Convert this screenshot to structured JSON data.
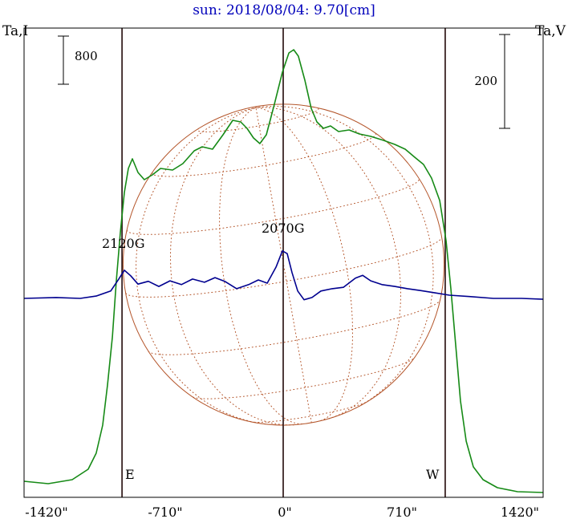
{
  "title": "sun: 2018/08/04: 9.70[cm]",
  "axis_labels": {
    "left": "Ta,I",
    "right": "Ta,V"
  },
  "scale_bars": {
    "left_label": "800",
    "right_label": "200"
  },
  "limb_labels": {
    "east": "E",
    "west": "W"
  },
  "annotations": {
    "east_spot": "2120G",
    "center_spot": "2070G"
  },
  "colors": {
    "title": "#0000bb",
    "intensity": "#168a16",
    "polarization": "#00008f",
    "grid": "#b4552a",
    "marker_line": "#3a2424",
    "frame": "#000000",
    "text": "#000000"
  },
  "chart_data": {
    "type": "line",
    "title": "sun: 2018/08/04: 9.70[cm]",
    "x_tick_labels": [
      "-1420\"",
      "-710\"",
      "0\"",
      "710\"",
      "1420\""
    ],
    "x_tick_arcsec": [
      -1420,
      -710,
      0,
      710,
      1420
    ],
    "xlim_arcsec": [
      -1555,
      1560
    ],
    "grid_on": false,
    "legend": "none",
    "limb_marker_arcsec": {
      "east": -967,
      "center": 0,
      "west": 972
    },
    "solar_disk": {
      "radius_arcsec": 963,
      "b0_deg": 6,
      "p_deg": 10,
      "lat_step_deg": 22.5,
      "lon_step_deg": 22.5
    },
    "scale_bar_units": {
      "intensity": 800,
      "polarization": 200
    },
    "annotations": [
      {
        "text": "2120G",
        "x_arcsec": -950,
        "series": "Ta,V"
      },
      {
        "text": "2070G",
        "x_arcsec": -10,
        "series": "Ta,V"
      }
    ],
    "series": [
      {
        "name": "Ta,I",
        "color_key": "intensity",
        "units": "scale-bar = 800",
        "points": [
          [
            -1555,
            200
          ],
          [
            -1410,
            160
          ],
          [
            -1266,
            227
          ],
          [
            -1170,
            400
          ],
          [
            -1122,
            667
          ],
          [
            -1083,
            1133
          ],
          [
            -1054,
            1800
          ],
          [
            -1025,
            2600
          ],
          [
            -1001,
            3533
          ],
          [
            -977,
            4333
          ],
          [
            -953,
            5000
          ],
          [
            -929,
            5400
          ],
          [
            -905,
            5560
          ],
          [
            -871,
            5333
          ],
          [
            -833,
            5213
          ],
          [
            -785,
            5293
          ],
          [
            -736,
            5400
          ],
          [
            -664,
            5373
          ],
          [
            -602,
            5480
          ],
          [
            -534,
            5693
          ],
          [
            -486,
            5760
          ],
          [
            -424,
            5720
          ],
          [
            -361,
            5960
          ],
          [
            -303,
            6200
          ],
          [
            -255,
            6173
          ],
          [
            -217,
            6067
          ],
          [
            -178,
            5907
          ],
          [
            -140,
            5813
          ],
          [
            -101,
            5960
          ],
          [
            -53,
            6467
          ],
          [
            -5,
            7000
          ],
          [
            34,
            7320
          ],
          [
            63,
            7373
          ],
          [
            91,
            7267
          ],
          [
            130,
            6867
          ],
          [
            168,
            6400
          ],
          [
            202,
            6173
          ],
          [
            241,
            6067
          ],
          [
            284,
            6107
          ],
          [
            332,
            6013
          ],
          [
            395,
            6040
          ],
          [
            457,
            5973
          ],
          [
            525,
            5933
          ],
          [
            602,
            5867
          ],
          [
            669,
            5800
          ],
          [
            732,
            5720
          ],
          [
            789,
            5587
          ],
          [
            842,
            5467
          ],
          [
            890,
            5240
          ],
          [
            939,
            4867
          ],
          [
            977,
            4200
          ],
          [
            1006,
            3400
          ],
          [
            1035,
            2467
          ],
          [
            1064,
            1533
          ],
          [
            1098,
            867
          ],
          [
            1141,
            440
          ],
          [
            1199,
            227
          ],
          [
            1285,
            93
          ],
          [
            1406,
            27
          ],
          [
            1560,
            13
          ]
        ]
      },
      {
        "name": "Ta,V",
        "color_key": "polarization",
        "units": "scale-bar = 200",
        "points": [
          [
            -1555,
            0
          ],
          [
            -1362,
            2
          ],
          [
            -1218,
            0
          ],
          [
            -1122,
            5
          ],
          [
            -1035,
            16
          ],
          [
            -987,
            42
          ],
          [
            -953,
            61
          ],
          [
            -915,
            49
          ],
          [
            -871,
            31
          ],
          [
            -809,
            37
          ],
          [
            -746,
            26
          ],
          [
            -679,
            38
          ],
          [
            -611,
            30
          ],
          [
            -544,
            42
          ],
          [
            -472,
            35
          ],
          [
            -409,
            45
          ],
          [
            -351,
            37
          ],
          [
            -279,
            21
          ],
          [
            -207,
            30
          ],
          [
            -149,
            40
          ],
          [
            -96,
            33
          ],
          [
            -43,
            68
          ],
          [
            -5,
            103
          ],
          [
            24,
            97
          ],
          [
            53,
            56
          ],
          [
            87,
            16
          ],
          [
            125,
            -3
          ],
          [
            173,
            2
          ],
          [
            226,
            16
          ],
          [
            294,
            21
          ],
          [
            361,
            24
          ],
          [
            433,
            44
          ],
          [
            477,
            50
          ],
          [
            525,
            38
          ],
          [
            592,
            30
          ],
          [
            669,
            26
          ],
          [
            746,
            21
          ],
          [
            823,
            17
          ],
          [
            910,
            12
          ],
          [
            997,
            7
          ],
          [
            1117,
            4
          ],
          [
            1261,
            0
          ],
          [
            1430,
            0
          ],
          [
            1560,
            -2
          ]
        ]
      }
    ]
  }
}
